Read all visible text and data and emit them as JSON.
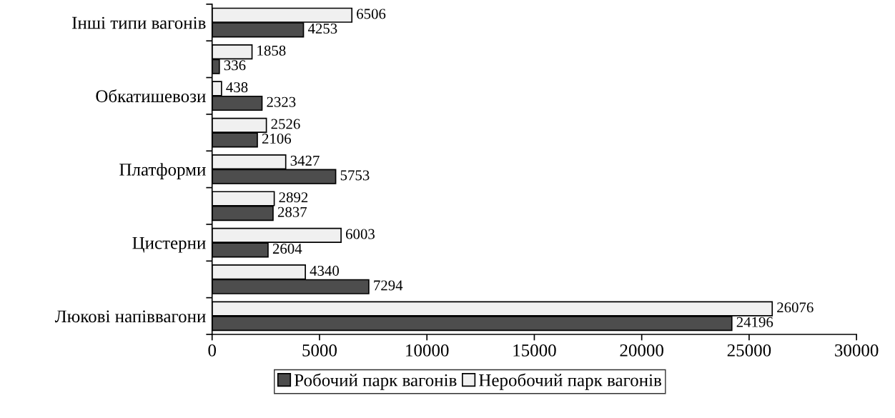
{
  "chart_data": {
    "type": "bar",
    "orientation": "horizontal",
    "categories": [
      "Інші типи вагонів",
      null,
      "Обкатишевози",
      null,
      "Платформи",
      null,
      "Цистерни",
      null,
      "Люкові напіввагони"
    ],
    "series": [
      {
        "name": "Робочий парк вагонів",
        "color": "#4d4d4d",
        "values": [
          4253,
          336,
          2323,
          2106,
          5753,
          2837,
          2604,
          7294,
          24196
        ]
      },
      {
        "name": "Неробочий парк вагонів",
        "color": "#f0f0f0",
        "values": [
          6506,
          1858,
          438,
          2526,
          3427,
          2892,
          6003,
          4340,
          26076
        ]
      }
    ],
    "xlim": [
      0,
      30000
    ],
    "xticks": [
      0,
      5000,
      10000,
      15000,
      20000,
      25000,
      30000
    ],
    "data_labels": true,
    "legend": "bottom",
    "grid": false
  }
}
